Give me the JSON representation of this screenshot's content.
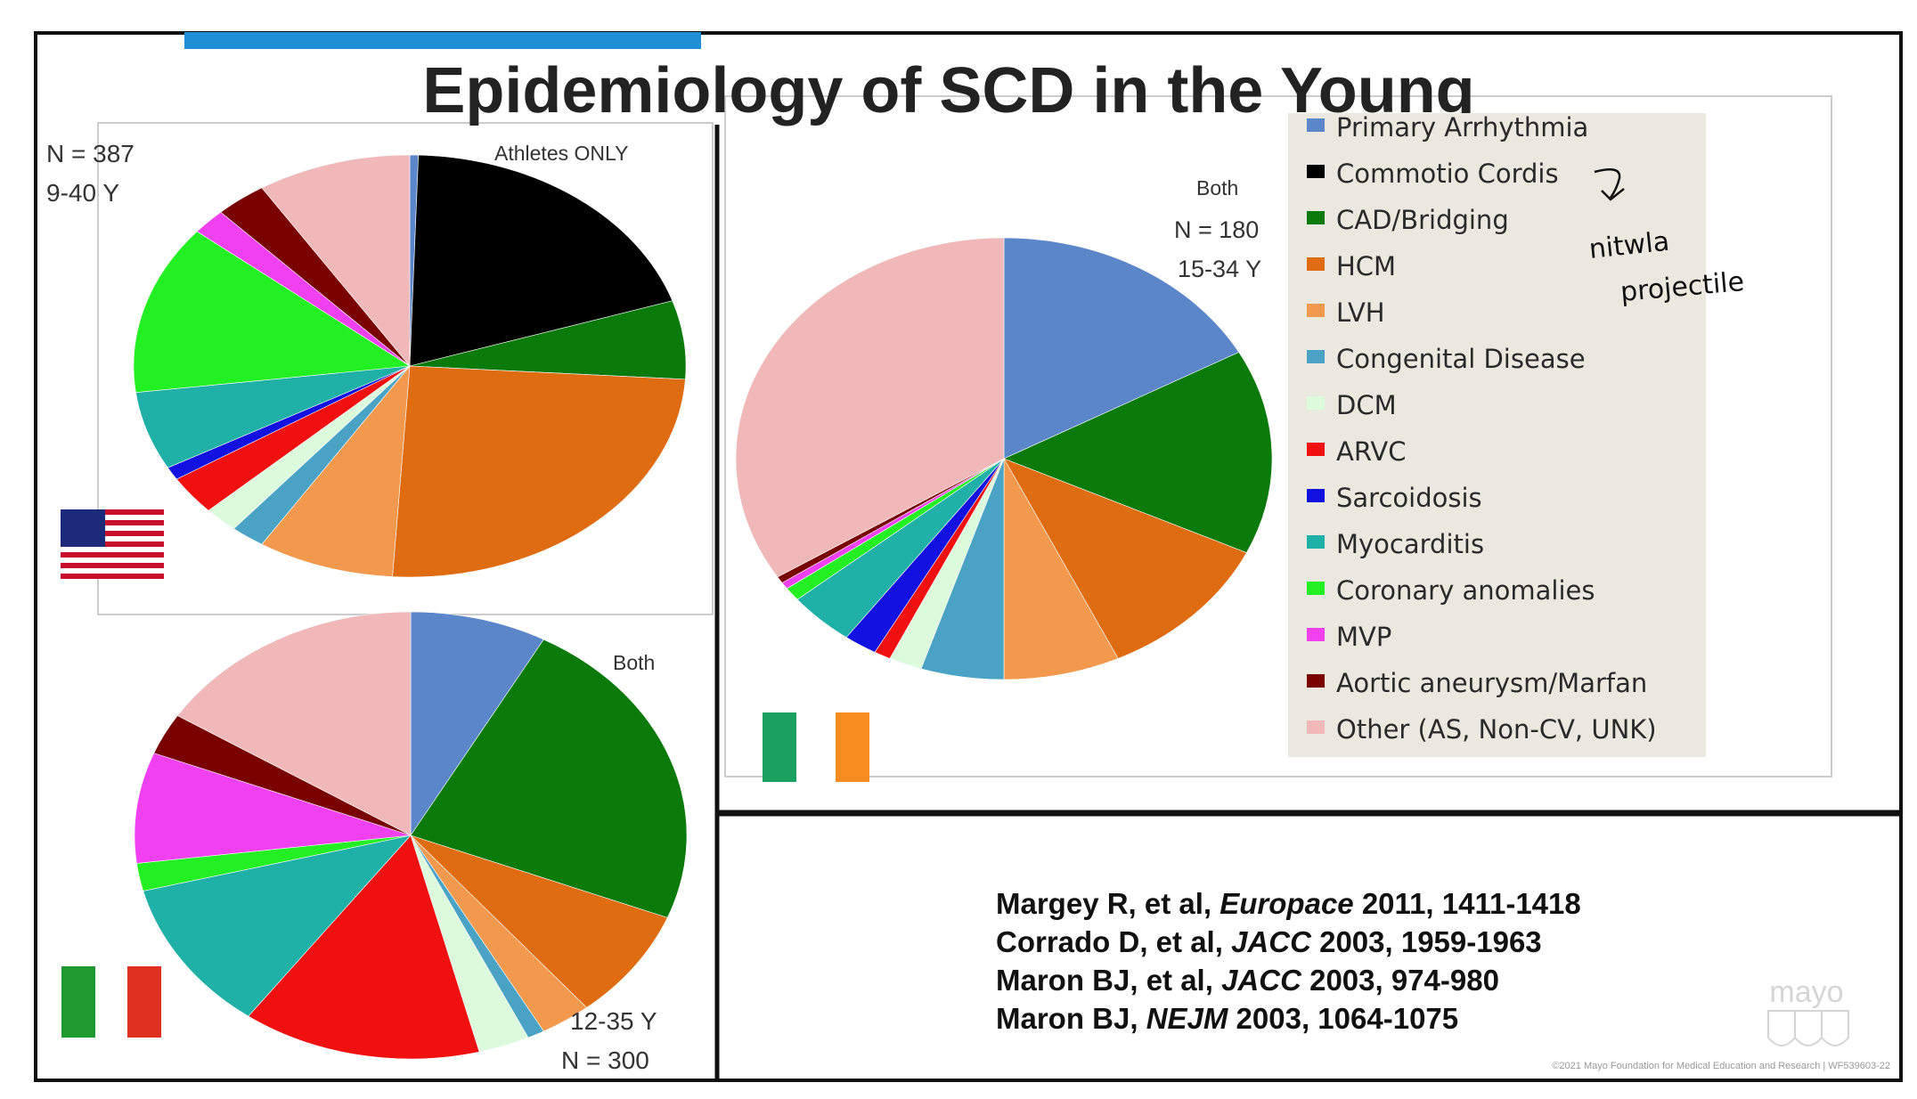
{
  "title": "Epidemiology of SCD in the Young",
  "colors": {
    "accent_bar": "#1f8fd6",
    "legend_bg": "#ebe8df",
    "slices": [
      "#5b86c9",
      "#000000",
      "#0a7a0a",
      "#e06c12",
      "#f2994d",
      "#4aa3c4",
      "#dcfadc",
      "#f01010",
      "#1010e0",
      "#1fb0a8",
      "#22f022",
      "#f040f0",
      "#7a0000",
      "#f0b8b8"
    ]
  },
  "legend": [
    "Primary Arrhythmia",
    "Commotio Cordis",
    "CAD/Bridging",
    "HCM",
    "LVH",
    "Congenital Disease",
    "DCM",
    "ARVC",
    "Sarcoidosis",
    "Myocarditis",
    "Coronary anomalies",
    "MVP",
    "Aortic aneurysm/Marfan",
    "Other (AS, Non-CV, UNK)"
  ],
  "annotation": {
    "line1": "nitwla",
    "line2": "projectile"
  },
  "chart_data": [
    {
      "type": "pie",
      "flag": "usa-flag",
      "subtitle": "Athletes ONLY",
      "n_label": "N = 387",
      "age_label": "9-40 Y",
      "categories": [
        "Primary Arrhythmia",
        "Commotio Cordis",
        "CAD/Bridging",
        "HCM",
        "LVH",
        "Congenital Disease",
        "DCM",
        "ARVC",
        "Sarcoidosis",
        "Myocarditis",
        "Coronary anomalies",
        "MVP",
        "Aortic aneurysm/Marfan",
        "Other (AS, Non-CV, UNK)"
      ],
      "values": [
        0.5,
        19.5,
        6,
        25,
        8,
        2,
        2,
        3,
        1,
        6,
        13,
        2,
        3,
        9
      ]
    },
    {
      "type": "pie",
      "flag": "italy-flag",
      "subtitle": "Both",
      "n_label": "N = 300",
      "age_label": "12-35 Y",
      "categories": [
        "Primary Arrhythmia",
        "Commotio Cordis",
        "CAD/Bridging",
        "HCM",
        "LVH",
        "Congenital Disease",
        "DCM",
        "ARVC",
        "Sarcoidosis",
        "Myocarditis",
        "Coronary anomalies",
        "MVP",
        "Aortic aneurysm/Marfan",
        "Other (AS, Non-CV, UNK)"
      ],
      "values": [
        8,
        0,
        23,
        8,
        3,
        1,
        3,
        14,
        0,
        11,
        2,
        8,
        3,
        16
      ]
    },
    {
      "type": "pie",
      "flag": "ireland-flag",
      "subtitle": "Both",
      "n_label": "N = 180",
      "age_label": "15-34 Y",
      "categories": [
        "Primary Arrhythmia",
        "Commotio Cordis",
        "CAD/Bridging",
        "HCM",
        "LVH",
        "Congenital Disease",
        "DCM",
        "ARVC",
        "Sarcoidosis",
        "Myocarditis",
        "Coronary anomalies",
        "MVP",
        "Aortic aneurysm/Marfan",
        "Other (AS, Non-CV, UNK)"
      ],
      "values": [
        17,
        0,
        15,
        11,
        7,
        5,
        2,
        1,
        2,
        4,
        1,
        0.5,
        0.5,
        34
      ]
    }
  ],
  "references": [
    {
      "authors": "Margey R, et al, ",
      "journal": "Europace",
      "rest": " 2011, 1411-1418"
    },
    {
      "authors": "Corrado D, et al, ",
      "journal": "JACC",
      "rest": " 2003, 1959-1963"
    },
    {
      "authors": "Maron BJ, et al, ",
      "journal": "JACC",
      "rest": " 2003, 974-980"
    },
    {
      "authors": "Maron BJ, ",
      "journal": "NEJM",
      "rest": " 2003, 1064-1075"
    }
  ],
  "logo": "mayo",
  "copyright": "©2021 Mayo Foundation for Medical Education and Research | WF539603-22"
}
